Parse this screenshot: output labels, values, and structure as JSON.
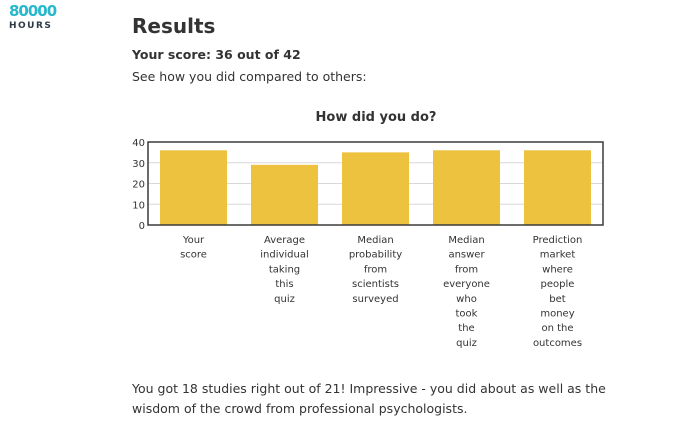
{
  "logo": {
    "number": "80000",
    "word": "HOURS"
  },
  "page": {
    "title": "Results",
    "score": "Your score: 36 out of 42",
    "compare": "See how you did compared to others:",
    "summary": "You got 18 studies right out of 21! Impressive - you did about as well as the wisdom of the crowd from professional psychologists."
  },
  "chart_data": {
    "type": "bar",
    "title": "How did you do?",
    "xlabel": "",
    "ylabel": "",
    "ylim": [
      0,
      40
    ],
    "yticks": [
      "0",
      "10",
      "20",
      "30",
      "40"
    ],
    "grid": true,
    "bar_color": "#ecc23f",
    "categories": [
      [
        "Your",
        "score"
      ],
      [
        "Average",
        "individual",
        "taking",
        "this",
        "quiz"
      ],
      [
        "Median",
        "probability",
        "from",
        "scientists",
        "surveyed"
      ],
      [
        "Median",
        "answer",
        "from",
        "everyone",
        "who",
        "took",
        "the",
        "quiz"
      ],
      [
        "Prediction",
        "market",
        "where",
        "people",
        "bet",
        "money",
        "on the",
        "outcomes"
      ]
    ],
    "values": [
      36,
      29,
      35,
      36,
      36
    ]
  }
}
